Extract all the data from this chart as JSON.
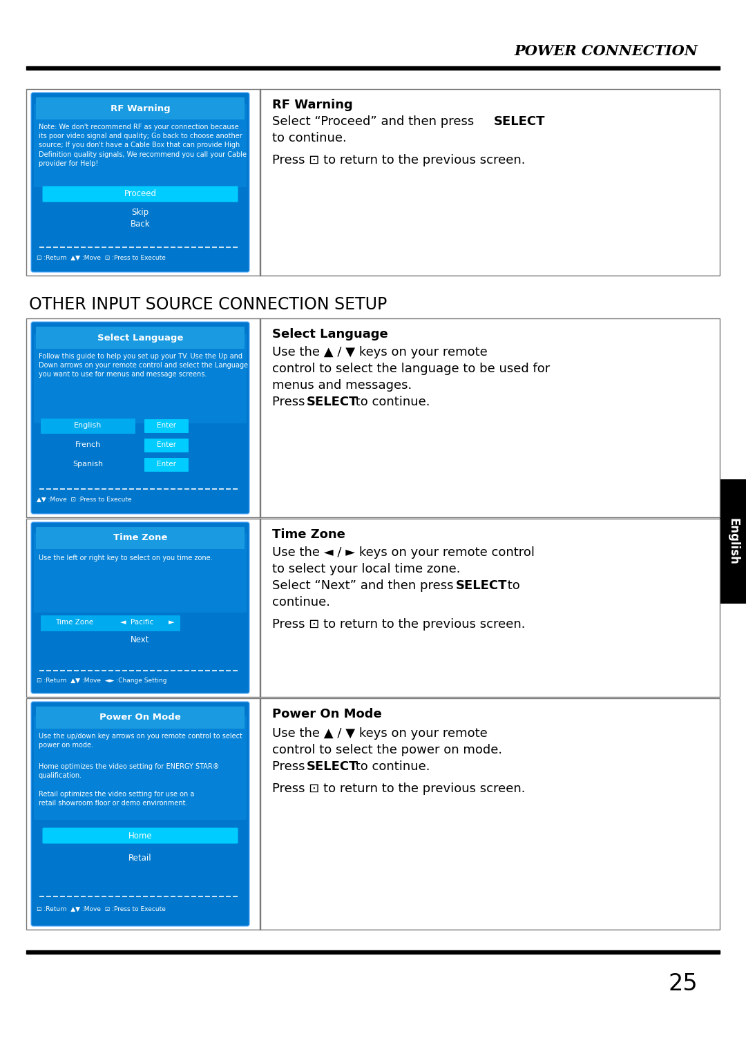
{
  "page_title": "POWER CONNECTION",
  "section_title": "OTHER INPUT SOURCE CONNECTION SETUP",
  "page_number": "25",
  "tab_text": "English",
  "bg_color": "#ffffff",
  "blue_dark": "#0077cc",
  "blue_medium": "#0099dd",
  "blue_light": "#33bbff",
  "blue_header": "#1a9ae0",
  "cyan_button": "#00ccff",
  "black": "#000000",
  "gray_border": "#777777"
}
